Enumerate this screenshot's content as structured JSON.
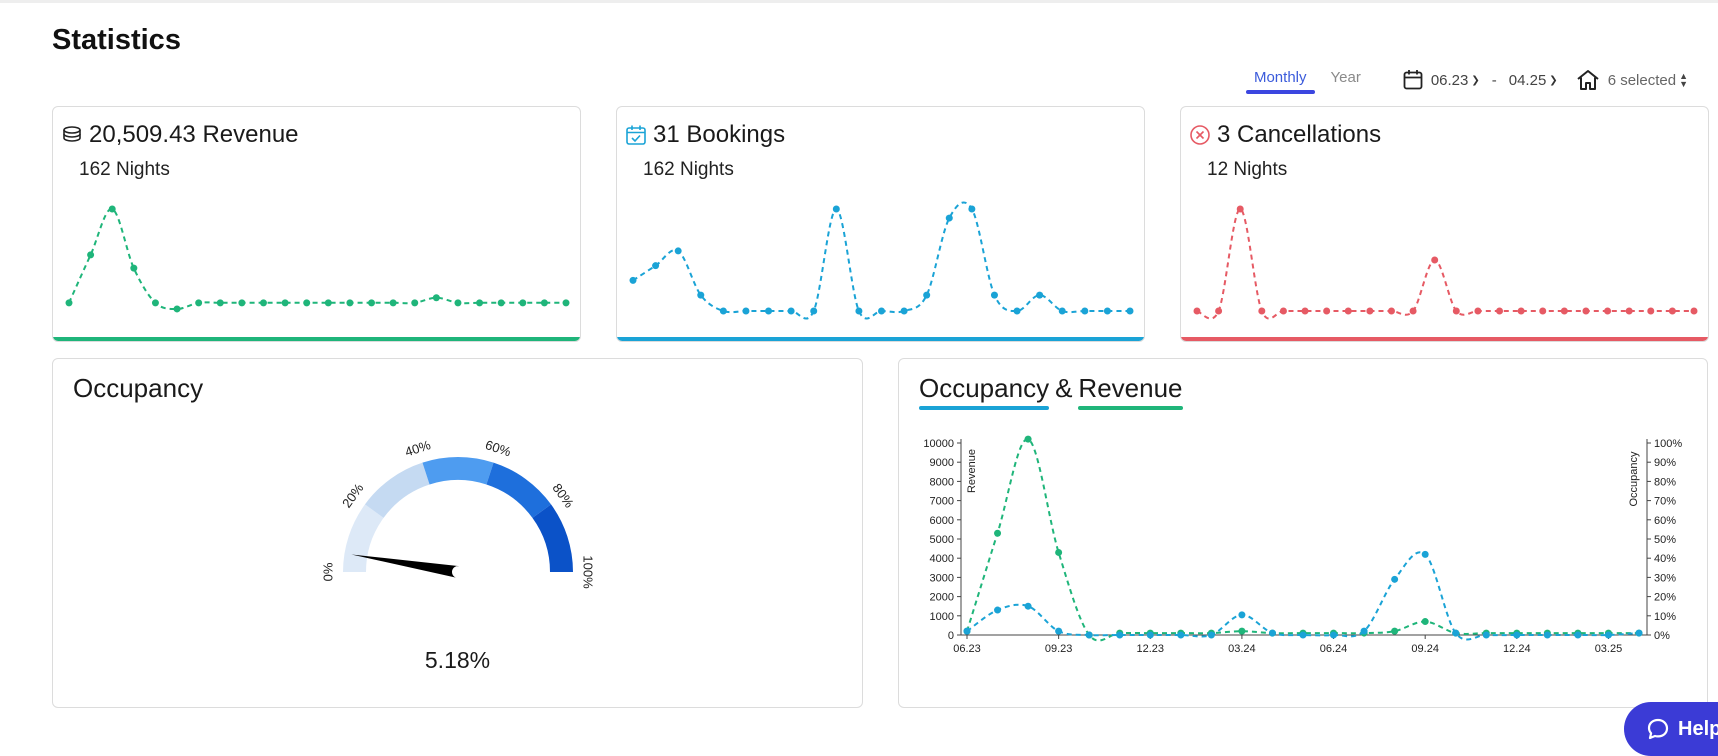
{
  "page": {
    "title": "Statistics"
  },
  "toolbar": {
    "tabs": [
      {
        "label": "Monthly",
        "active": true
      },
      {
        "label": "Year",
        "active": false
      }
    ],
    "date_from": "06.23",
    "date_sep": "-",
    "date_to": "04.25",
    "property_select": "6 selected"
  },
  "cards": {
    "revenue": {
      "title": "20,509.43 Revenue",
      "sub": "162 Nights",
      "color": "#1fb57a",
      "icon": "coins-icon",
      "series": [
        0.8,
        5.5,
        10,
        4.2,
        0.8,
        0.2,
        0.8,
        0.8,
        0.8,
        0.8,
        0.8,
        0.8,
        0.8,
        0.8,
        0.8,
        0.8,
        0.8,
        1.3,
        0.8,
        0.8,
        0.8,
        0.8,
        0.8,
        0.8
      ]
    },
    "bookings": {
      "title": "31 Bookings",
      "sub": "162 Nights",
      "color": "#1aa3d6",
      "icon": "calendar-check-icon",
      "series": [
        2.7,
        4.0,
        5.3,
        1.4,
        0,
        0,
        0,
        0,
        0,
        9.0,
        0,
        0,
        0,
        1.4,
        8.2,
        9.0,
        1.4,
        0,
        1.4,
        0,
        0,
        0,
        0
      ]
    },
    "cancellations": {
      "title": "3 Cancellations",
      "sub": "12 Nights",
      "color": "#e65a64",
      "icon": "cancel-circle-icon",
      "series": [
        0,
        0,
        10,
        0,
        0,
        0,
        0,
        0,
        0,
        0,
        0,
        5.0,
        0,
        0,
        0,
        0,
        0,
        0,
        0,
        0,
        0,
        0,
        0,
        0
      ]
    }
  },
  "occupancy": {
    "title": "Occupancy",
    "value": 5.18,
    "value_label": "5.18%",
    "ticks": [
      "0%",
      "20%",
      "40%",
      "60%",
      "80%",
      "100%"
    ],
    "segment_colors": [
      "#dde9f7",
      "#c5daf2",
      "#4e9cf0",
      "#1e6fdc",
      "#0b52c8"
    ]
  },
  "occ_rev": {
    "title_occ": "Occupancy",
    "title_amp": "&",
    "title_rev": "Revenue",
    "occ_color": "#1aa3d6",
    "rev_color": "#1fb57a",
    "left_axis_label": "Revenue",
    "right_axis_label": "Occupancy",
    "left_ticks": [
      "0",
      "1000",
      "2000",
      "3000",
      "4000",
      "5000",
      "6000",
      "7000",
      "8000",
      "9000",
      "10000"
    ],
    "right_ticks": [
      "0%",
      "10%",
      "20%",
      "30%",
      "40%",
      "50%",
      "60%",
      "70%",
      "80%",
      "90%",
      "100%"
    ],
    "x_ticks": [
      "06.23",
      "09.23",
      "12.23",
      "03.24",
      "06.24",
      "09.24",
      "12.24",
      "03.25"
    ],
    "chart_data": {
      "type": "line",
      "x": [
        "06.23",
        "07.23",
        "08.23",
        "09.23",
        "10.23",
        "11.23",
        "12.23",
        "01.24",
        "02.24",
        "03.24",
        "04.24",
        "05.24",
        "06.24",
        "07.24",
        "08.24",
        "09.24",
        "10.24",
        "11.24",
        "12.24",
        "01.25",
        "02.25",
        "03.25",
        "04.25"
      ],
      "series": [
        {
          "name": "Revenue",
          "axis": "left",
          "values": [
            200,
            5300,
            10200,
            4300,
            0,
            100,
            100,
            100,
            100,
            200,
            100,
            100,
            100,
            100,
            200,
            700,
            100,
            100,
            100,
            100,
            100,
            100,
            100
          ]
        },
        {
          "name": "Occupancy",
          "axis": "right",
          "values": [
            2,
            13,
            15,
            2,
            0,
            0,
            0,
            0,
            0,
            10.5,
            1,
            0,
            0,
            2,
            29,
            42,
            1,
            0,
            0,
            0,
            0,
            0,
            1
          ]
        }
      ],
      "ylim_left": [
        0,
        10000
      ],
      "ylim_right": [
        0,
        100
      ]
    }
  },
  "help": {
    "label": "Help"
  }
}
